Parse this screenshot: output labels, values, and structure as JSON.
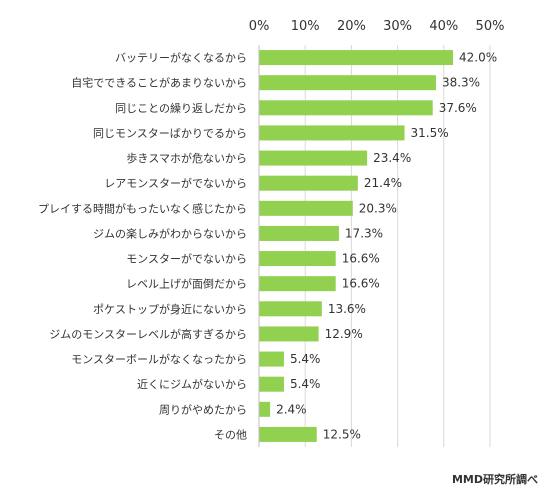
{
  "chart_data": {
    "type": "bar",
    "orientation": "horizontal",
    "categories": [
      "バッテリーがなくなるから",
      "自宅でできることがあまりないから",
      "同じことの繰り返しだから",
      "同じモンスターばかりでるから",
      "歩きスマホが危ないから",
      "レアモンスターがでないから",
      "プレイする時間がもったいなく感じたから",
      "ジムの楽しみがわからないから",
      "モンスターがでないから",
      "レベル上げが面倒だから",
      "ポケストップが身近にないから",
      "ジムのモンスターレベルが高すぎるから",
      "モンスターボールがなくなったから",
      "近くにジムがないから",
      "周りがやめたから",
      "その他"
    ],
    "values": [
      42.0,
      38.3,
      37.6,
      31.5,
      23.4,
      21.4,
      20.3,
      17.3,
      16.6,
      16.6,
      13.6,
      12.9,
      5.4,
      5.4,
      2.4,
      12.5
    ],
    "value_labels": [
      "42.0%",
      "38.3%",
      "37.6%",
      "31.5%",
      "23.4%",
      "21.4%",
      "20.3%",
      "17.3%",
      "16.6%",
      "16.6%",
      "13.6%",
      "12.9%",
      "5.4%",
      "5.4%",
      "2.4%",
      "12.5%"
    ],
    "xlim": [
      0,
      50
    ],
    "x_ticks": [
      "0%",
      "10%",
      "20%",
      "30%",
      "40%",
      "50%"
    ],
    "x_tick_values": [
      0,
      10,
      20,
      30,
      40,
      50
    ],
    "axis_position": "top",
    "grid": true,
    "bar_color": "#92d050",
    "grid_color": "#d9d9d9",
    "text_color": "#333333"
  },
  "source": "MMD研究所調べ"
}
